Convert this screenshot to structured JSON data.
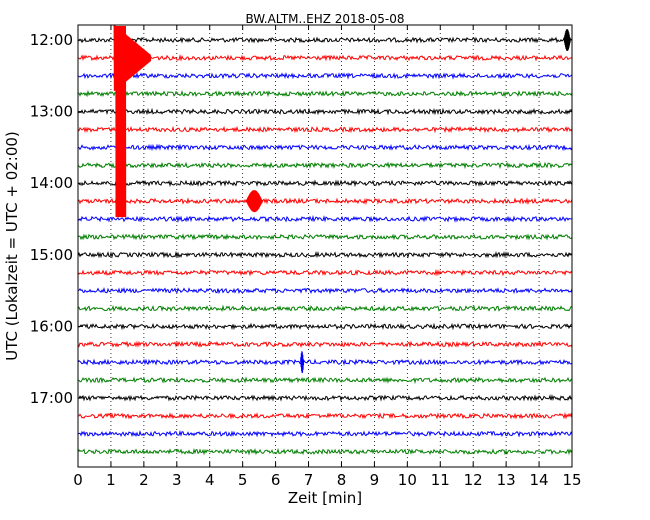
{
  "chart_data": {
    "type": "line",
    "title": "BW.ALTM..EHZ 2018-05-08",
    "xlabel": "Zeit  [min]",
    "ylabel": "UTC (Lokalzeit = UTC + 02:00)",
    "x_ticks": [
      "0",
      "1",
      "2",
      "3",
      "4",
      "5",
      "6",
      "7",
      "8",
      "9",
      "10",
      "11",
      "12",
      "13",
      "14",
      "15"
    ],
    "xlim": [
      0,
      15
    ],
    "y_ticks": [
      "12:00",
      "13:00",
      "14:00",
      "15:00",
      "16:00",
      "17:00"
    ],
    "grid": "vertical dotted lines at each minute",
    "trace_colors": [
      "#000000",
      "#ff0000",
      "#0000ff",
      "#007f00"
    ],
    "traces": [
      "12:00",
      "12:15",
      "12:30",
      "12:45",
      "13:00",
      "13:15",
      "13:30",
      "13:45",
      "14:00",
      "14:15",
      "14:30",
      "14:45",
      "15:00",
      "15:15",
      "15:30",
      "15:45",
      "16:00",
      "16:15",
      "16:30",
      "16:45",
      "17:00",
      "17:15",
      "17:30",
      "17:45"
    ],
    "events": [
      {
        "trace": "12:15",
        "start_min": 1.1,
        "end_min": 2.2,
        "peak_amplitude": "large",
        "note": "strong event, clipped across traces 12:00-14:15"
      },
      {
        "trace": "12:00",
        "start_min": 14.75,
        "end_min": 14.95,
        "peak_amplitude": "small"
      },
      {
        "trace": "14:15",
        "start_min": 5.1,
        "end_min": 5.6,
        "peak_amplitude": "small"
      },
      {
        "trace": "16:30",
        "start_min": 6.75,
        "end_min": 6.85,
        "peak_amplitude": "small"
      }
    ]
  }
}
